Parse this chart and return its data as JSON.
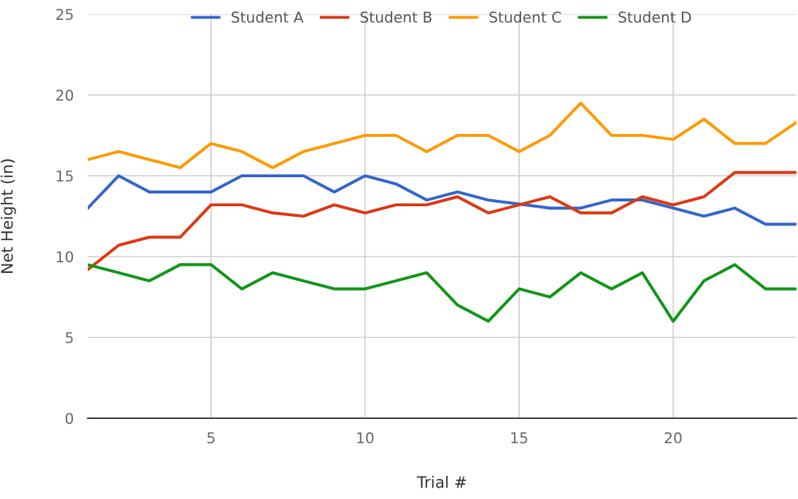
{
  "chart_data": {
    "type": "line",
    "xlabel": "Trial #",
    "ylabel": "Net Height (in)",
    "x": [
      1,
      2,
      3,
      4,
      5,
      6,
      7,
      8,
      9,
      10,
      11,
      12,
      13,
      14,
      15,
      16,
      17,
      18,
      19,
      20,
      21,
      22,
      23,
      24
    ],
    "series": [
      {
        "name": "Student A",
        "color": "#3366cc",
        "values": [
          13,
          15,
          14,
          14,
          14,
          15,
          15,
          15,
          14,
          15,
          14.5,
          13.5,
          14,
          13.5,
          13.25,
          13,
          13,
          13.5,
          13.5,
          13,
          12.5,
          13,
          12,
          12
        ]
      },
      {
        "name": "Student B",
        "color": "#dc3912",
        "values": [
          9.2,
          10.7,
          11.2,
          11.2,
          13.2,
          13.2,
          12.7,
          12.5,
          13.2,
          12.7,
          13.2,
          13.2,
          13.7,
          12.7,
          13.2,
          13.7,
          12.7,
          12.7,
          13.7,
          13.2,
          13.7,
          15.2,
          15.2,
          15.2
        ]
      },
      {
        "name": "Student C",
        "color": "#ff9900",
        "values": [
          16,
          16.5,
          16,
          15.5,
          17,
          16.5,
          15.5,
          16.5,
          17,
          17.5,
          17.5,
          16.5,
          17.5,
          17.5,
          16.5,
          17.5,
          19.5,
          17.5,
          17.5,
          17.25,
          18.5,
          17,
          17,
          18.3
        ]
      },
      {
        "name": "Student D",
        "color": "#109618",
        "values": [
          9.5,
          9,
          8.5,
          9.5,
          9.5,
          8,
          9,
          8.5,
          8,
          8,
          8.5,
          9,
          7,
          6,
          8,
          7.5,
          9,
          8,
          9,
          6,
          8.5,
          9.5,
          8,
          8
        ]
      }
    ],
    "xlim": [
      1,
      24
    ],
    "xticks": [
      5,
      10,
      15,
      20
    ],
    "ylim": [
      0,
      25
    ],
    "yticks": [
      0,
      5,
      10,
      15,
      20,
      25
    ],
    "grid": true,
    "legend": "top",
    "marker": "none",
    "line_style": "solid"
  }
}
